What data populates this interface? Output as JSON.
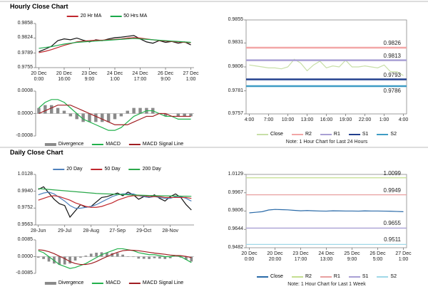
{
  "headers": [
    "Hourly Close Chart",
    "Daily Close Chart"
  ],
  "chart_data": [
    {
      "type": "line",
      "ylim": [
        0.9755,
        0.9858
      ],
      "yticks": [
        0.9858,
        0.9824,
        0.9789,
        0.9755
      ],
      "categories": [
        "20 Dec 0:00",
        null,
        null,
        null,
        "20 Dec 16:00",
        null,
        null,
        null,
        "23 Dec 9:00",
        null,
        null,
        null,
        "24 Dec 1:00",
        null,
        null,
        null,
        "24 Dec 17:00",
        null,
        null,
        null,
        "26 Dec 9:00",
        null,
        null,
        null,
        "27 Dec 1:00"
      ],
      "series": [
        {
          "color": "#111111",
          "values": [
            0.9792,
            0.9798,
            0.9805,
            0.9818,
            0.9822,
            0.982,
            0.9824,
            0.9819,
            0.9815,
            0.982,
            0.9818,
            0.9822,
            0.9825,
            0.9826,
            0.9828,
            0.983,
            0.9822,
            0.9815,
            0.9812,
            0.9818,
            0.9814,
            0.9816,
            0.9812,
            0.9815,
            0.9808
          ]
        },
        {
          "name": "20 Hr MA",
          "color": "#c0272d",
          "values": [
            0.979,
            0.9793,
            0.9797,
            0.9802,
            0.9807,
            0.9811,
            0.9815,
            0.9817,
            0.9818,
            0.9819,
            0.9819,
            0.982,
            0.9821,
            0.9822,
            0.9824,
            0.9825,
            0.9824,
            0.9822,
            0.982,
            0.9818,
            0.9817,
            0.9816,
            0.9815,
            0.9814,
            0.9813
          ]
        },
        {
          "name": "50 Hrs MA",
          "color": "#1aa84a",
          "values": [
            0.98,
            0.9802,
            0.9804,
            0.9807,
            0.981,
            0.9812,
            0.9814,
            0.9815,
            0.9816,
            0.9817,
            0.9818,
            0.9819,
            0.982,
            0.9821,
            0.9822,
            0.9823,
            0.9822,
            0.9821,
            0.982,
            0.9819,
            0.9818,
            0.9817,
            0.9816,
            0.9815,
            0.9814
          ]
        }
      ]
    },
    {
      "type": "combo",
      "ylim": [
        -0.0008,
        0.0008
      ],
      "yticks": [
        0.0008,
        {
          "value": 0,
          "label": "0.0000"
        },
        -0.0008
      ],
      "series": [
        {
          "name": "Divergence",
          "kind": "bar",
          "color": "#8a8a8a",
          "values": [
            0.0002,
            0.0003,
            0.0003,
            0.0002,
            0.0001,
            -0.0001,
            -0.0002,
            -0.0003,
            -0.0003,
            -0.0003,
            -0.0003,
            -0.0003,
            -0.0002,
            -0.0001,
            0.0001,
            0.0002,
            0.0002,
            0.0002,
            0.0002,
            0,
            -0.0001,
            0,
            -0.0001,
            -0.0001,
            -0.0001
          ]
        },
        {
          "name": "MACD",
          "color": "#22b14c",
          "values": [
            0.0002,
            0.0004,
            0.0005,
            0.0005,
            0.0004,
            0.0002,
            0,
            -0.0002,
            -0.0003,
            -0.0004,
            -0.0005,
            -0.0006,
            -0.0006,
            -0.0005,
            -0.0003,
            -0.0001,
            0,
            0.0001,
            0.0001,
            0,
            -0.0001,
            -0.0001,
            -0.0002,
            -0.0002,
            -0.0002
          ]
        },
        {
          "name": "MACD Signal Line",
          "color": "#a01e22",
          "values": [
            0,
            0.0001,
            0.0002,
            0.0003,
            0.0003,
            0.0003,
            0.0002,
            0.0001,
            0,
            -0.0001,
            -0.0002,
            -0.0003,
            -0.0004,
            -0.0004,
            -0.0004,
            -0.0003,
            -0.0002,
            -0.0001,
            -0.0001,
            0,
            0,
            -0.0001,
            -0.0001,
            -0.0001,
            -0.0001
          ]
        }
      ]
    },
    {
      "type": "line",
      "ylim": [
        0.9757,
        0.9855
      ],
      "yticks": [
        0.9855,
        0.9831,
        0.9806,
        0.9781,
        0.9757
      ],
      "note": "Note: 1 Hour Chart for Last 24 Hours",
      "categories": [
        "4:00",
        null,
        null,
        "7:00",
        null,
        null,
        "10:00",
        null,
        null,
        "13:00",
        null,
        null,
        "16:00",
        null,
        null,
        "19:00",
        null,
        null,
        "22:00",
        null,
        null,
        "1:00",
        null,
        null,
        "4:00"
      ],
      "series": [
        {
          "name": "Close",
          "color": "#c8dfa8",
          "values": [
            0.9808,
            0.9807,
            0.9806,
            0.9805,
            0.9805,
            0.9804,
            0.9806,
            0.9814,
            0.981,
            0.9802,
            0.9808,
            0.9812,
            0.9805,
            0.9807,
            0.9806,
            0.9813,
            0.9806,
            0.9806,
            0.9807,
            0.9806,
            0.9805,
            0.9808,
            0.9801,
            0.9801,
            0.9797
          ]
        },
        {
          "name": "R2",
          "color": "#f2a6a6",
          "value": 0.9826
        },
        {
          "name": "R1",
          "color": "#a9a0d4",
          "value": 0.9813
        },
        {
          "name": "S1",
          "color": "#23408e",
          "value": 0.9793
        },
        {
          "name": "S2",
          "color": "#3f9cc4",
          "value": 0.9786
        }
      ]
    },
    {
      "type": "line",
      "ylim": [
        0.9563,
        1.0128
      ],
      "yticks": [
        1.0128,
        {
          "value": 0.994,
          "label": "0.9940"
        },
        0.9752,
        0.9563
      ],
      "categories": [
        "28-Jun",
        null,
        null,
        null,
        null,
        "29-Jul",
        null,
        null,
        null,
        null,
        "28-Aug",
        null,
        null,
        null,
        null,
        "27-Sep",
        null,
        null,
        null,
        null,
        "29-Oct",
        null,
        null,
        null,
        null,
        "28-Nov",
        null,
        null,
        null,
        null
      ],
      "series": [
        {
          "color": "#111111",
          "values": [
            0.996,
            0.999,
            0.992,
            0.985,
            0.98,
            0.978,
            0.965,
            0.972,
            0.979,
            0.976,
            0.977,
            0.982,
            0.987,
            0.988,
            0.99,
            0.992,
            0.989,
            0.993,
            0.99,
            0.985,
            0.988,
            0.987,
            0.99,
            0.986,
            0.983,
            0.988,
            0.991,
            0.987,
            0.979,
            0.973
          ]
        },
        {
          "name": "20 Day",
          "color": "#4f81bd",
          "values": [
            0.99,
            0.992,
            0.993,
            0.991,
            0.987,
            0.983,
            0.978,
            0.975,
            0.975,
            0.976,
            0.977,
            0.979,
            0.982,
            0.985,
            0.988,
            0.99,
            0.991,
            0.991,
            0.991,
            0.989,
            0.988,
            0.987,
            0.988,
            0.987,
            0.986,
            0.986,
            0.988,
            0.988,
            0.986,
            0.983
          ]
        },
        {
          "name": "50 Day",
          "color": "#c0272d",
          "values": [
            0.984,
            0.986,
            0.988,
            0.989,
            0.988,
            0.986,
            0.984,
            0.981,
            0.979,
            0.977,
            0.976,
            0.976,
            0.977,
            0.979,
            0.981,
            0.984,
            0.986,
            0.988,
            0.989,
            0.989,
            0.989,
            0.988,
            0.988,
            0.988,
            0.987,
            0.987,
            0.987,
            0.987,
            0.987,
            0.986
          ]
        },
        {
          "name": "200 Day",
          "color": "#2aa84a",
          "values": [
            0.997,
            0.9965,
            0.996,
            0.9955,
            0.995,
            0.9945,
            0.994,
            0.9935,
            0.993,
            0.9925,
            0.992,
            0.9915,
            0.9912,
            0.991,
            0.9908,
            0.9905,
            0.9903,
            0.99,
            0.9898,
            0.9896,
            0.9894,
            0.9892,
            0.989,
            0.9889,
            0.9888,
            0.9887,
            0.9886,
            0.9885,
            0.9884,
            0.9883
          ]
        }
      ]
    },
    {
      "type": "combo",
      "ylim": [
        -0.0085,
        0.0085
      ],
      "yticks": [
        0.0085,
        {
          "value": 0,
          "label": "0.0000"
        },
        -0.0085
      ],
      "series": [
        {
          "name": "Divergence",
          "kind": "bar",
          "color": "#8a8a8a",
          "values": [
            -0.0005,
            -0.0012,
            -0.0025,
            -0.0035,
            -0.0042,
            -0.004,
            -0.0035,
            -0.002,
            -0.0005,
            0.0005,
            0.0015,
            0.002,
            0.0022,
            0.002,
            0.0018,
            0.0018,
            0.001,
            0.0002,
            -0.0002,
            -0.001,
            -0.0011,
            -0.0012,
            -0.0008,
            -0.001,
            -0.0012,
            -0.0008,
            -0.0001,
            -0.0005,
            -0.0016,
            -0.0025
          ]
        },
        {
          "name": "MACD",
          "color": "#22b14c",
          "values": [
            0.003,
            0.002,
            0,
            -0.002,
            -0.004,
            -0.005,
            -0.006,
            -0.0055,
            -0.0045,
            -0.0035,
            -0.002,
            -0.0005,
            0.001,
            0.002,
            0.003,
            0.004,
            0.004,
            0.0035,
            0.003,
            0.002,
            0.0015,
            0.001,
            0.001,
            0.0005,
            0,
            0,
            0.0005,
            0,
            -0.0015,
            -0.003
          ]
        },
        {
          "name": "MACD Signal Line",
          "color": "#a01e22",
          "values": [
            0.0035,
            0.0032,
            0.0025,
            0.0015,
            0.0002,
            -0.001,
            -0.0025,
            -0.0035,
            -0.004,
            -0.004,
            -0.0035,
            -0.0025,
            -0.0012,
            0,
            0.0012,
            0.0022,
            0.003,
            0.0033,
            0.0032,
            0.003,
            0.0026,
            0.0022,
            0.0018,
            0.0015,
            0.0012,
            0.0008,
            0.0006,
            0.0005,
            0.0001,
            -0.0005
          ]
        }
      ]
    },
    {
      "type": "line",
      "ylim": [
        0.9482,
        1.0129
      ],
      "yticks": [
        1.0129,
        0.9967,
        0.9806,
        0.9644,
        0.9482
      ],
      "note": "Note: 1 Hour Chart for Last 1 Week",
      "categories": [
        "20 Dec 0:00",
        null,
        null,
        null,
        "20 Dec 20:00",
        null,
        null,
        null,
        "23 Dec 17:00",
        null,
        null,
        null,
        "24 Dec 13:00",
        null,
        null,
        null,
        "25 Dec 9:00",
        null,
        null,
        null,
        "26 Dec 5:00",
        null,
        null,
        null,
        "27 Dec 1:00"
      ],
      "series": [
        {
          "name": "Close",
          "color": "#2a6aa8",
          "values": [
            0.979,
            0.9795,
            0.98,
            0.9815,
            0.982,
            0.9818,
            0.9816,
            0.9812,
            0.9808,
            0.981,
            0.9808,
            0.9806,
            0.9805,
            0.9808,
            0.9807,
            0.9806,
            0.9806,
            0.9805,
            0.9807,
            0.9806,
            0.9806,
            0.9805,
            0.9804,
            0.9802,
            0.98
          ]
        },
        {
          "name": "R2",
          "color": "#c4de8f",
          "value": 1.0099
        },
        {
          "name": "R1",
          "color": "#e8a0a0",
          "value": 0.9949
        },
        {
          "name": "S1",
          "color": "#a9a0d4",
          "value": 0.9655
        },
        {
          "name": "S2",
          "color": "#9fd8e8",
          "value": 0.9511
        }
      ]
    }
  ]
}
